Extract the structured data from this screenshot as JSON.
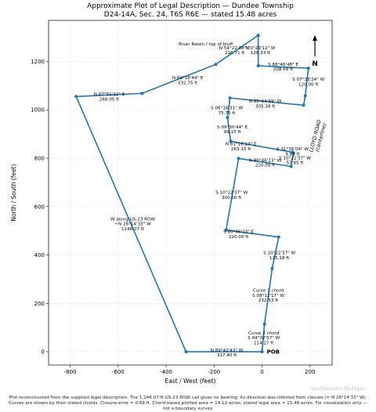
{
  "chart_data": {
    "type": "line",
    "title": "Approximate Plot of Legal Description — Dundee Township",
    "subtitle": "D24-14A, Sec. 24, T6S R6E — stated 15.48 acres",
    "x_label": "East / West (feet)",
    "y_label": "North / South (feet)",
    "x": [
      0,
      10,
      42,
      69,
      -150,
      -98,
      121,
      131,
      127,
      -131,
      -144,
      -134,
      173,
      180,
      193,
      -16,
      -16,
      -193,
      -500,
      -775,
      -317,
      0
    ],
    "y": [
      0,
      114,
      344,
      474,
      503,
      799,
      766,
      821,
      825,
      870,
      968,
      1049,
      1019,
      1058,
      1172,
      1182,
      1308,
      1188,
      1068,
      1055,
      0,
      0
    ],
    "color": "#1f77b4",
    "xlim": [
      -890,
      292
    ],
    "ylim": [
      -55,
      1370
    ],
    "xticks": [
      -800,
      -600,
      -400,
      -200,
      0,
      200
    ],
    "yticks": [
      0,
      200,
      400,
      600,
      800,
      1000,
      1200
    ],
    "grid": true,
    "annotations": [
      {
        "text": "River Raisin / top of bluff",
        "x": -235,
        "y": 1273
      },
      {
        "text": "N 54°22'48\" E\n216.71 ft",
        "x": -114,
        "y": 1247
      },
      {
        "text": "N 0°29'12\" W\n126.33 ft",
        "x": -7,
        "y": 1247
      },
      {
        "text": "S 88°46'48\" E\n208.69 ft",
        "x": 88,
        "y": 1179
      },
      {
        "text": "S 07°33'24\" W\n120.00 ft",
        "x": 193,
        "y": 1117
      },
      {
        "text": "N 69°18'44\" E\n332.75 ft",
        "x": -310,
        "y": 1123
      },
      {
        "text": "N 87°51'22\" E\n268.05 ft",
        "x": -637,
        "y": 1055
      },
      {
        "text": "N 85°04'59\" W\n305.38 ft",
        "x": 13,
        "y": 1026
      },
      {
        "text": "S 06°16'31\" W\n75.75 ft",
        "x": -147,
        "y": 998
      },
      {
        "text": "S 09°30'44\" E\n99.15 ft",
        "x": -124,
        "y": 920
      },
      {
        "text": "N 81°16'14\" E\n263.15 ft",
        "x": -88,
        "y": 849
      },
      {
        "text": "S 31°36'04\" W\n9.85 ft",
        "x": 127,
        "y": 828
      },
      {
        "text": "S 10°22'37\" W\n57.85 ft",
        "x": 137,
        "y": 792
      },
      {
        "text": "N 80°46'23\" W\n220.00 ft",
        "x": 13,
        "y": 782
      },
      {
        "text": "S 10°22'37\" W\n300.00 ft",
        "x": -127,
        "y": 649
      },
      {
        "text": "S 80°46'23\" E\n220.00 ft",
        "x": -98,
        "y": 487
      },
      {
        "text": "S 10°22'37\" W\n125.18 ft",
        "x": 72,
        "y": 399
      },
      {
        "text": "Curve 1 chord\nS 08°12'17\" W\n232.53 ft",
        "x": 26,
        "y": 234
      },
      {
        "text": "Curve 2 chord\nS 04°02'57\" W\n114.27 ft",
        "x": 7,
        "y": 58
      },
      {
        "text": "N 89°42'43\" W\n317.40 ft",
        "x": -147,
        "y": -3
      },
      {
        "text": "W along US-23 ROW\n~N 26°14'33\" W\n1146.07 ft",
        "x": -539,
        "y": 529
      }
    ],
    "pob_label": "POB",
    "road_label": "LLOYD ROAD\n(centerline)",
    "north_label": "N",
    "footnote": "Plot reconstructed from the supplied legal description. The 1,146.07-ft US-23 ROW call gives no bearing; its direction was inferred from closure (≈ N 26°14'33\" W). Curves are shown by their stated chords. Closure error ≈ 0.68 ft. Chord-based plotted area ≈ 14.12 acres; stated legal area = 15.48 acres. For visualization only — not a boundary survey.",
    "watermark": "Southeastern Michigan"
  }
}
